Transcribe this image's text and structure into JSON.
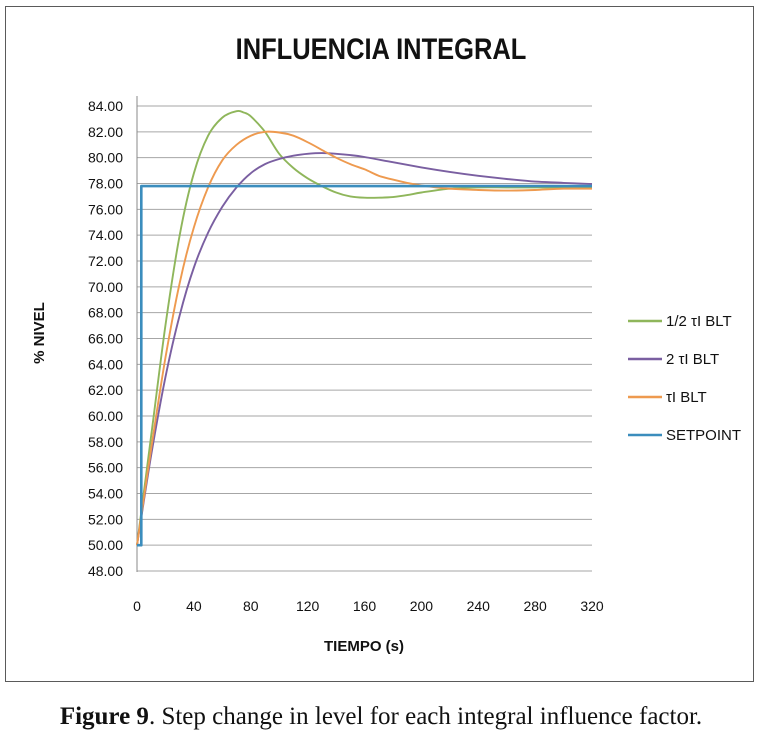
{
  "chart_data": {
    "type": "line",
    "title": "INFLUENCIA INTEGRAL",
    "xlabel": "TIEMPO (s)",
    "ylabel": "% NIVEL",
    "xlim": [
      0,
      320
    ],
    "ylim": [
      48,
      84
    ],
    "xticks": [
      0,
      40,
      80,
      120,
      160,
      200,
      240,
      280,
      320
    ],
    "yticks": [
      48,
      50,
      52,
      54,
      56,
      58,
      60,
      62,
      64,
      66,
      68,
      70,
      72,
      74,
      76,
      78,
      80,
      82,
      84
    ],
    "ytick_decimals": 2,
    "grid": "horizontal",
    "legend_position": "right",
    "series": [
      {
        "name": "1/2 τI BLT",
        "color": "#8fb65b",
        "x": [
          0,
          10,
          20,
          30,
          40,
          50,
          60,
          70,
          75,
          80,
          90,
          100,
          110,
          120,
          130,
          140,
          150,
          160,
          170,
          180,
          190,
          200,
          220,
          240,
          260,
          280,
          300,
          320
        ],
        "y": [
          50,
          58.5,
          67,
          74,
          78.8,
          81.7,
          83.1,
          83.6,
          83.5,
          83.2,
          82,
          80.3,
          79.2,
          78.4,
          77.8,
          77.3,
          77,
          76.9,
          76.9,
          76.95,
          77.1,
          77.3,
          77.6,
          77.7,
          77.7,
          77.7,
          77.7,
          77.7
        ]
      },
      {
        "name": "2 τI BLT",
        "color": "#7a5fa1",
        "x": [
          0,
          10,
          20,
          30,
          40,
          50,
          60,
          70,
          80,
          90,
          100,
          110,
          120,
          130,
          140,
          150,
          160,
          180,
          200,
          220,
          240,
          260,
          280,
          300,
          320
        ],
        "y": [
          50,
          57,
          63,
          67.8,
          71.5,
          74.2,
          76.2,
          77.7,
          78.8,
          79.5,
          79.9,
          80.15,
          80.3,
          80.35,
          80.3,
          80.2,
          80.05,
          79.65,
          79.25,
          78.9,
          78.6,
          78.35,
          78.15,
          78.05,
          77.95
        ]
      },
      {
        "name": "τI BLT",
        "color": "#ee9a4f",
        "x": [
          0,
          10,
          20,
          30,
          40,
          50,
          60,
          70,
          80,
          90,
          100,
          110,
          120,
          130,
          140,
          150,
          160,
          170,
          180,
          190,
          200,
          220,
          240,
          260,
          280,
          300,
          320
        ],
        "y": [
          50,
          57.5,
          64.5,
          70.3,
          74.6,
          77.7,
          79.8,
          81,
          81.7,
          82,
          81.95,
          81.7,
          81.2,
          80.6,
          80,
          79.5,
          79.1,
          78.6,
          78.3,
          78.05,
          77.85,
          77.6,
          77.5,
          77.45,
          77.5,
          77.6,
          77.6
        ]
      },
      {
        "name": "SETPOINT",
        "color": "#3b8dbd",
        "x": [
          0,
          3,
          3,
          320
        ],
        "y": [
          50,
          50,
          77.8,
          77.8
        ]
      }
    ]
  },
  "caption": {
    "label": "Figure 9",
    "text": ". Step change in level for each integral influence factor."
  }
}
